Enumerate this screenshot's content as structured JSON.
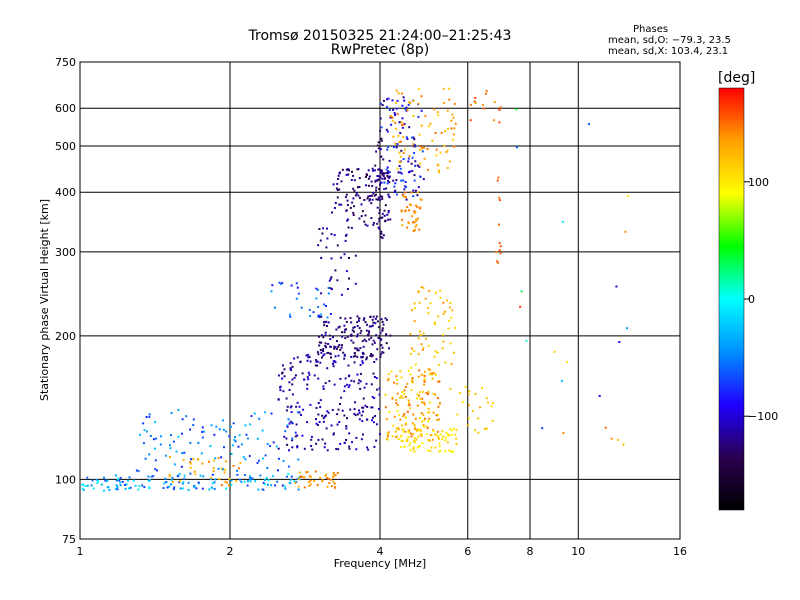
{
  "chart_data": {
    "type": "scatter",
    "title": "Tromsø 20150325 21:24:00–21:25:43",
    "subtitle": "RwPretec (8p)",
    "xlabel": "Frequency [MHz]",
    "ylabel": "Stationary phase Virtual Height [km]",
    "x_scale": "log2",
    "y_scale": "log",
    "xlim": [
      1,
      16
    ],
    "ylim": [
      75,
      750
    ],
    "grid": true,
    "x_ticks": [
      1,
      2,
      4,
      6,
      8,
      10,
      16
    ],
    "x_tick_labels": [
      "1",
      "2",
      "4",
      "6",
      "8",
      "10",
      "16"
    ],
    "y_ticks": [
      75,
      100,
      200,
      300,
      400,
      500,
      600,
      750
    ],
    "y_tick_labels": [
      "75",
      "100",
      "200",
      "300",
      "400",
      "500",
      "600",
      "750"
    ],
    "stats": {
      "header": "Phases",
      "line_o": "mean, sd,O: −79.3, 23.5",
      "line_x": "mean, sd,X: 103.4, 23.1"
    },
    "colorbar": {
      "label": "[deg]",
      "range": [
        -180,
        180
      ],
      "ticks": [
        100,
        0,
        -100
      ],
      "tick_labels": [
        "100",
        "0",
        "−100"
      ],
      "stops": [
        "#000000",
        "#2a0050",
        "#1f00ff",
        "#0090ff",
        "#00ffff",
        "#00ff00",
        "#ffff00",
        "#ffa000",
        "#ff0000"
      ]
    },
    "clusters": [
      {
        "x": [
          0.95,
          1.25
        ],
        "y": [
          94,
          102
        ],
        "c": [
          -75,
          5
        ],
        "n": 45
      },
      {
        "x": [
          1.25,
          2.8
        ],
        "y": [
          95,
          103
        ],
        "c": [
          -80,
          0
        ],
        "n": 110
      },
      {
        "x": [
          1.5,
          2.1
        ],
        "y": [
          97,
          112
        ],
        "c": [
          115,
          150
        ],
        "n": 35
      },
      {
        "x": [
          2.7,
          3.3
        ],
        "y": [
          96,
          104
        ],
        "c": [
          120,
          150
        ],
        "n": 40
      },
      {
        "x": [
          1.3,
          2.8
        ],
        "y": [
          104,
          140
        ],
        "c": [
          -80,
          -20
        ],
        "n": 110
      },
      {
        "x": [
          2.5,
          4.0
        ],
        "y": [
          115,
          185
        ],
        "c": [
          -130,
          -95
        ],
        "n": 230
      },
      {
        "x": [
          3.0,
          4.2
        ],
        "y": [
          180,
          220
        ],
        "c": [
          -140,
          -110
        ],
        "n": 160
      },
      {
        "x": [
          2.4,
          3.2
        ],
        "y": [
          218,
          260
        ],
        "c": [
          -90,
          -30
        ],
        "n": 30
      },
      {
        "x": [
          3.0,
          3.6
        ],
        "y": [
          240,
          340
        ],
        "c": [
          -140,
          -100
        ],
        "n": 35
      },
      {
        "x": [
          3.2,
          4.2
        ],
        "y": [
          340,
          450
        ],
        "c": [
          -140,
          -105
        ],
        "n": 130
      },
      {
        "x": [
          3.9,
          4.1
        ],
        "y": [
          320,
          520
        ],
        "c": [
          -140,
          -115
        ],
        "n": 40
      },
      {
        "x": [
          4.0,
          4.9
        ],
        "y": [
          385,
          640
        ],
        "c": [
          -130,
          -60
        ],
        "n": 110
      },
      {
        "x": [
          4.2,
          5.7
        ],
        "y": [
          440,
          660
        ],
        "c": [
          110,
          150
        ],
        "n": 85
      },
      {
        "x": [
          4.4,
          4.85
        ],
        "y": [
          330,
          400
        ],
        "c": [
          130,
          150
        ],
        "n": 40
      },
      {
        "x": [
          4.1,
          5.3
        ],
        "y": [
          120,
          170
        ],
        "c": [
          100,
          155
        ],
        "n": 150
      },
      {
        "x": [
          4.4,
          5.7
        ],
        "y": [
          114,
          128
        ],
        "c": [
          90,
          115
        ],
        "n": 70
      },
      {
        "x": [
          4.6,
          5.7
        ],
        "y": [
          160,
          255
        ],
        "c": [
          105,
          140
        ],
        "n": 70
      },
      {
        "x": [
          5.5,
          6.8
        ],
        "y": [
          125,
          160
        ],
        "c": [
          100,
          130
        ],
        "n": 25
      },
      {
        "x": [
          6.0,
          7.0
        ],
        "y": [
          560,
          660
        ],
        "c": [
          130,
          165
        ],
        "n": 15
      },
      {
        "x": [
          6.8,
          7.0
        ],
        "y": [
          280,
          450
        ],
        "c": [
          140,
          165
        ],
        "n": 12
      },
      {
        "x": [
          7.5,
          13.0
        ],
        "y": [
          110,
          650
        ],
        "c": [
          -110,
          180
        ],
        "n": 22
      }
    ]
  }
}
